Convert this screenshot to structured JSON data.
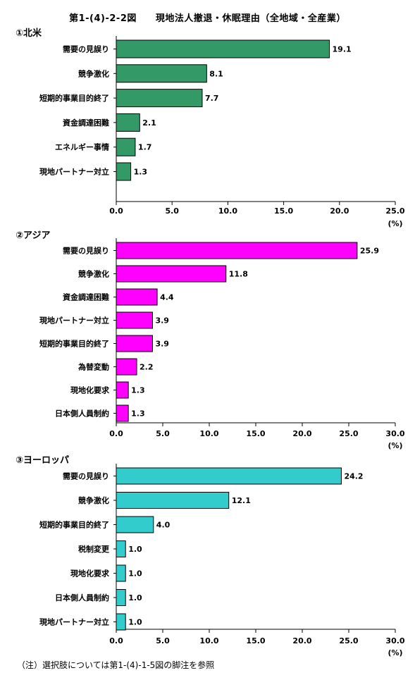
{
  "title": "第1-(4)-2-2図　　現地法人撤退・休眠理由（全地域・全産業）",
  "footnote": "（注）選択肢については第1-(4)-1-5図の脚注を参照",
  "chart_data": [
    {
      "type": "bar",
      "orientation": "horizontal",
      "title": "①北米",
      "categories": [
        "需要の見誤り",
        "競争激化",
        "短期的事業目的終了",
        "資金調達困難",
        "エネルギー事情",
        "現地パートナー対立"
      ],
      "values": [
        19.1,
        8.1,
        7.7,
        2.1,
        1.7,
        1.3
      ],
      "value_labels": [
        "19.1",
        "8.1",
        "7.7",
        "2.1",
        "1.7",
        "1.3"
      ],
      "xlim": [
        0,
        25
      ],
      "ticks": [
        "0.0",
        "5.0",
        "10.0",
        "15.0",
        "20.0",
        "25.0"
      ],
      "unit": "(%)",
      "color": "#339966"
    },
    {
      "type": "bar",
      "orientation": "horizontal",
      "title": "②アジア",
      "categories": [
        "需要の見誤り",
        "競争激化",
        "資金調達困難",
        "現地パートナー対立",
        "短期的事業目的終了",
        "為替変動",
        "現地化要求",
        "日本側人員制約"
      ],
      "values": [
        25.9,
        11.8,
        4.4,
        3.9,
        3.9,
        2.2,
        1.3,
        1.3
      ],
      "value_labels": [
        "25.9",
        "11.8",
        "4.4",
        "3.9",
        "3.9",
        "2.2",
        "1.3",
        "1.3"
      ],
      "xlim": [
        0,
        30
      ],
      "ticks": [
        "0.0",
        "5.0",
        "10.0",
        "15.0",
        "20.0",
        "25.0",
        "30.0"
      ],
      "unit": "(%)",
      "color": "#ff00ff"
    },
    {
      "type": "bar",
      "orientation": "horizontal",
      "title": "③ヨーロッパ",
      "categories": [
        "需要の見誤り",
        "競争激化",
        "短期的事業目的終了",
        "税制変更",
        "現地化要求",
        "日本側人員制約",
        "現地パートナー対立"
      ],
      "values": [
        24.2,
        12.1,
        4.0,
        1.0,
        1.0,
        1.0,
        1.0
      ],
      "value_labels": [
        "24.2",
        "12.1",
        "4.0",
        "1.0",
        "1.0",
        "1.0",
        "1.0"
      ],
      "xlim": [
        0,
        30
      ],
      "ticks": [
        "0.0",
        "5.0",
        "10.0",
        "15.0",
        "20.0",
        "25.0",
        "30.0"
      ],
      "unit": "(%)",
      "color": "#33cccc"
    }
  ]
}
